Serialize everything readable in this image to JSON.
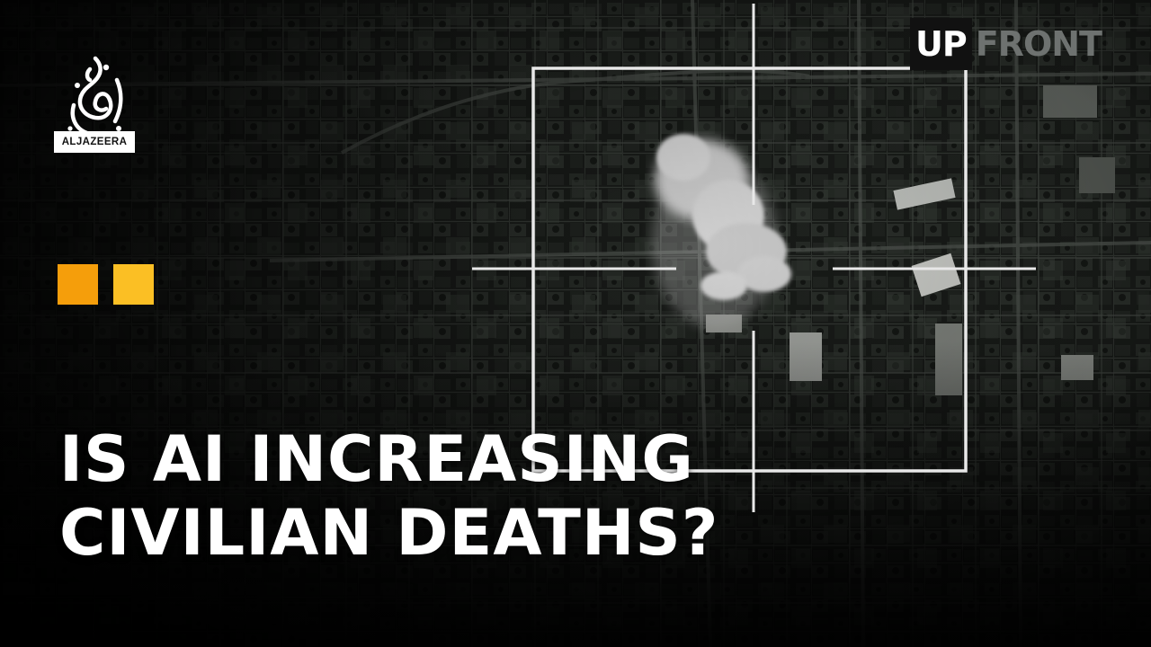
{
  "headline": {
    "line1": "IS AI INCREASING",
    "line2": "CIVILIAN DEATHS?"
  },
  "channel": {
    "wordmark": "ALJAZEERA"
  },
  "show": {
    "part1": "UP",
    "part2": "FRONT"
  },
  "colors": {
    "square_left": "#f59e0b",
    "square_right": "#fbbf24",
    "crosshair": "#e8e8e8"
  }
}
